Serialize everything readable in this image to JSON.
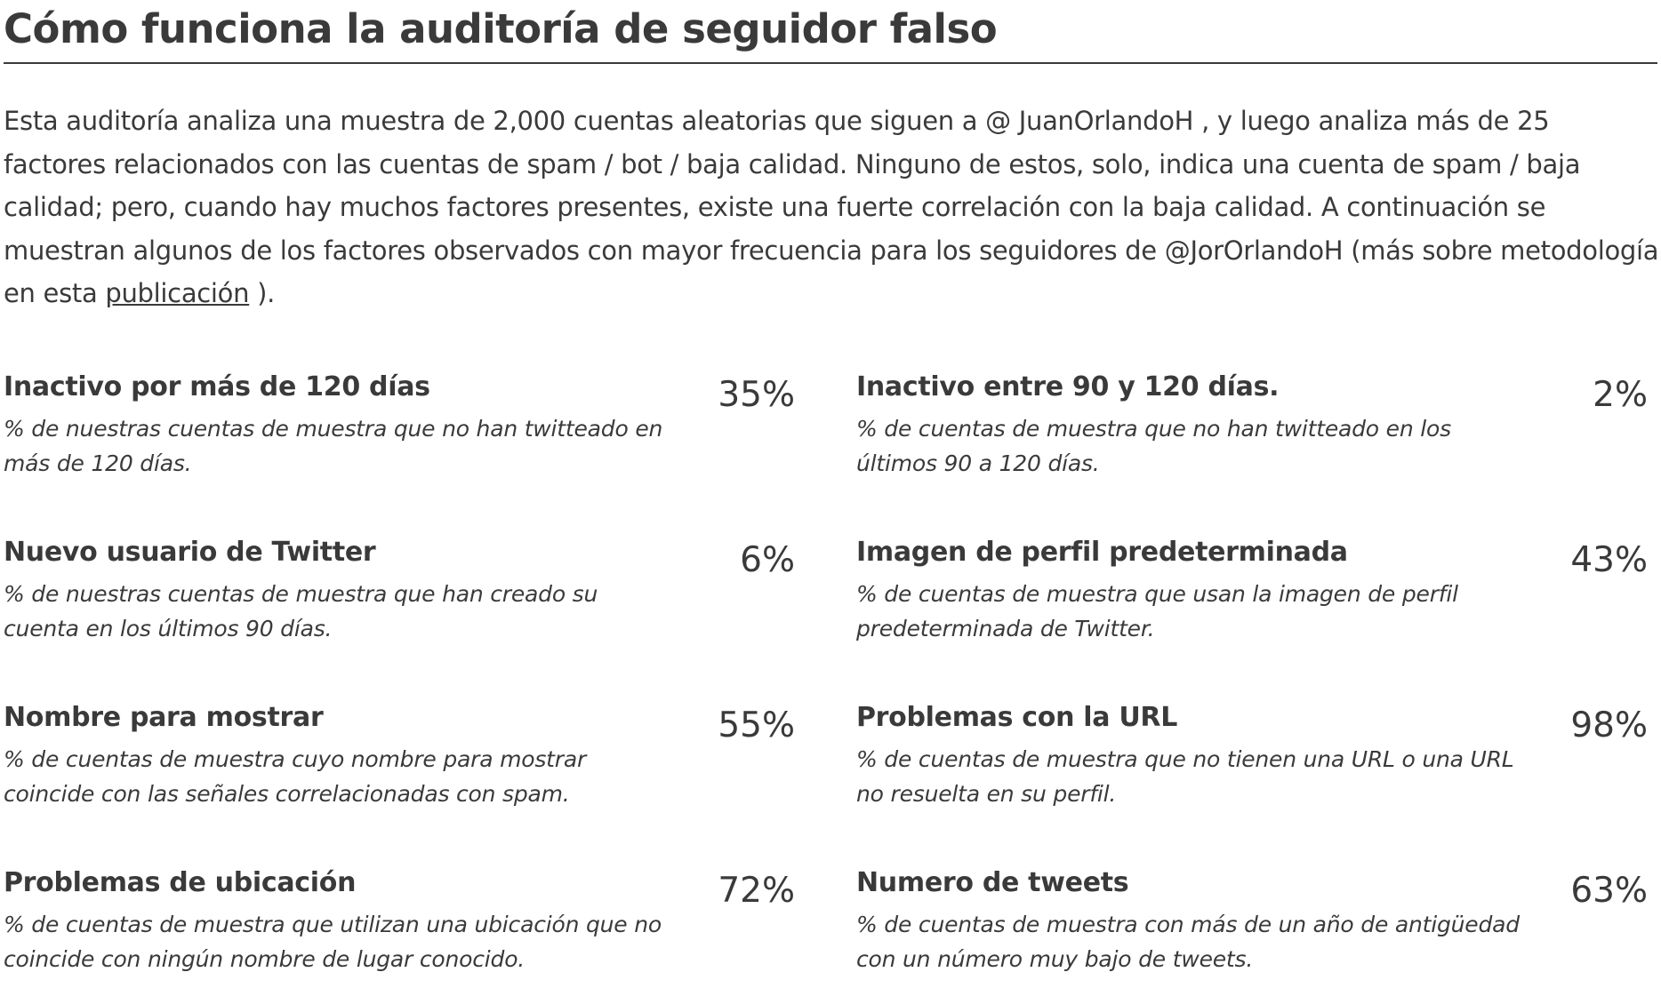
{
  "header": {
    "title": "Cómo funciona la auditoría de seguidor falso"
  },
  "intro": {
    "text_before_link": "Esta auditoría analiza una muestra de 2,000 cuentas aleatorias que siguen a @ JuanOrlandoH , y luego analiza más de 25 factores relacionados con las cuentas de spam / bot / baja calidad. Ninguno de estos, solo, indica una cuenta de spam / baja calidad; pero, cuando hay muchos factores presentes, existe una fuerte correlación con la baja calidad. A continuación se muestran algunos de los factores observados con mayor frecuencia para los seguidores de @JorOrlandoH (más sobre metodología en esta ",
    "link_label": "publicación",
    "text_after_link": " )."
  },
  "factors": [
    {
      "title": "Inactivo por más de 120 días",
      "percent": "35%",
      "description": "% de nuestras cuentas de muestra que no han twitteado en más de 120 días."
    },
    {
      "title": "Inactivo entre 90 y 120 días.",
      "percent": "2%",
      "description": "% de cuentas de muestra que no han twitteado en los últimos 90 a 120 días."
    },
    {
      "title": "Nuevo usuario de Twitter",
      "percent": "6%",
      "description": "% de nuestras cuentas de muestra que han creado su cuenta en los últimos 90 días."
    },
    {
      "title": "Imagen de perfil predeterminada",
      "percent": "43%",
      "description": "% de cuentas de muestra que usan la imagen de perfil predeterminada de Twitter."
    },
    {
      "title": "Nombre para mostrar",
      "percent": "55%",
      "description": "% de cuentas de muestra cuyo nombre para mostrar coincide con las señales correlacionadas con spam."
    },
    {
      "title": "Problemas con la URL",
      "percent": "98%",
      "description": "% de cuentas de muestra que no tienen una URL o una URL no resuelta en su perfil."
    },
    {
      "title": "Problemas de ubicación",
      "percent": "72%",
      "description": "% de cuentas de muestra que utilizan una ubicación que no coincide con ningún nombre de lugar conocido."
    },
    {
      "title": "Numero de tweets",
      "percent": "63%",
      "description": "% de cuentas de muestra con más de un año de antigüedad con un número muy bajo de tweets."
    }
  ]
}
